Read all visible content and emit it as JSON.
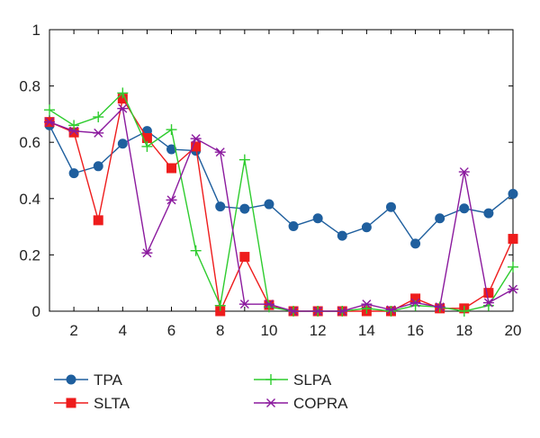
{
  "chart_data": {
    "type": "line",
    "title": "",
    "xlabel": "",
    "ylabel": "",
    "x": [
      1,
      2,
      3,
      4,
      5,
      6,
      7,
      8,
      9,
      10,
      11,
      12,
      13,
      14,
      15,
      16,
      17,
      18,
      19,
      20
    ],
    "xlim": [
      1,
      20
    ],
    "ylim": [
      0,
      1
    ],
    "xticks": [
      2,
      4,
      6,
      8,
      10,
      12,
      14,
      16,
      18,
      20
    ],
    "yticks": [
      0,
      0.2,
      0.4,
      0.6,
      0.8,
      1
    ],
    "ytick_labels": [
      "0",
      "0.2",
      "0.4",
      "0.6",
      "0.8",
      "1"
    ],
    "grid": false,
    "legend_position": "bottom",
    "series": [
      {
        "name": "TPA",
        "color": "#1f5f9e",
        "marker": "circle",
        "values": [
          0.66,
          0.49,
          0.515,
          0.595,
          0.64,
          0.575,
          0.57,
          0.372,
          0.364,
          0.38,
          0.302,
          0.33,
          0.268,
          0.298,
          0.37,
          0.24,
          0.33,
          0.365,
          0.348,
          0.417
        ]
      },
      {
        "name": "SLTA",
        "color": "#ee1c1c",
        "marker": "square",
        "values": [
          0.672,
          0.635,
          0.323,
          0.755,
          0.615,
          0.508,
          0.585,
          0.0,
          0.193,
          0.022,
          0.0,
          0.0,
          0.0,
          0.0,
          0.0,
          0.045,
          0.01,
          0.01,
          0.065,
          0.257
        ]
      },
      {
        "name": "SLPA",
        "color": "#2ecc2e",
        "marker": "plus",
        "values": [
          0.715,
          0.66,
          0.69,
          0.775,
          0.585,
          0.645,
          0.215,
          0.02,
          0.538,
          0.015,
          0.0,
          0.0,
          0.0,
          0.01,
          0.0,
          0.02,
          0.015,
          0.0,
          0.02,
          0.157
        ]
      },
      {
        "name": "COPRA",
        "color": "#8b1a9e",
        "marker": "asterisk",
        "values": [
          0.672,
          0.64,
          0.633,
          0.72,
          0.207,
          0.395,
          0.613,
          0.565,
          0.025,
          0.025,
          0.0,
          0.0,
          0.0,
          0.025,
          0.005,
          0.03,
          0.015,
          0.495,
          0.03,
          0.078
        ]
      }
    ]
  }
}
